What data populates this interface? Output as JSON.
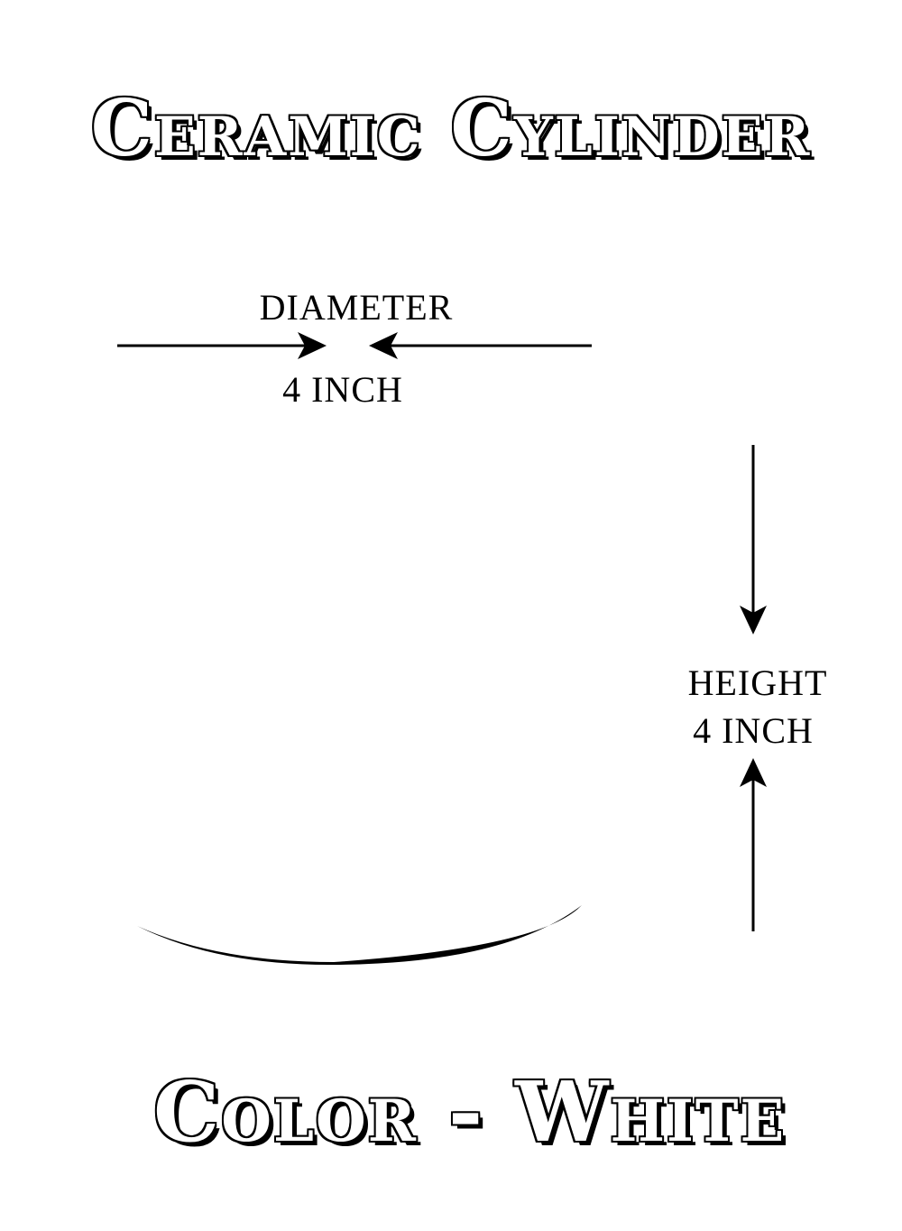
{
  "title": "Ceramic Cylinder",
  "diameter": {
    "label": "DIAMETER",
    "value": "4 INCH"
  },
  "height": {
    "label": "HEIGHT",
    "value": "4 INCH"
  },
  "color_line": "Color - White",
  "colors": {
    "ink": "#000000",
    "background": "#ffffff"
  }
}
